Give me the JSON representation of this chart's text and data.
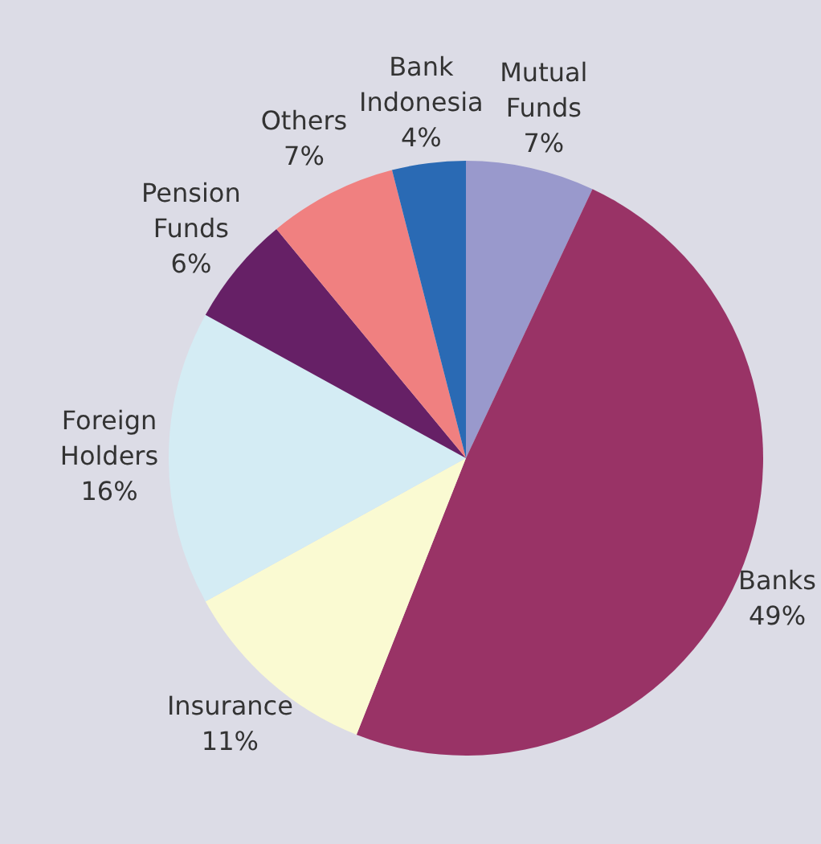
{
  "chart_data": {
    "type": "pie",
    "categories": [
      "Mutual Funds",
      "Banks",
      "Insurance",
      "Foreign Holders",
      "Pension Funds",
      "Others",
      "Bank Indonesia"
    ],
    "values": [
      7,
      49,
      11,
      16,
      6,
      7,
      4
    ],
    "colors": [
      "#9999cc",
      "#993366",
      "#fafad2",
      "#d4ecf4",
      "#662066",
      "#f08080",
      "#2a6ab4"
    ],
    "value_labels": [
      "7%",
      "49%",
      "11%",
      "16%",
      "6%",
      "7%",
      "4%"
    ],
    "legend": false
  }
}
